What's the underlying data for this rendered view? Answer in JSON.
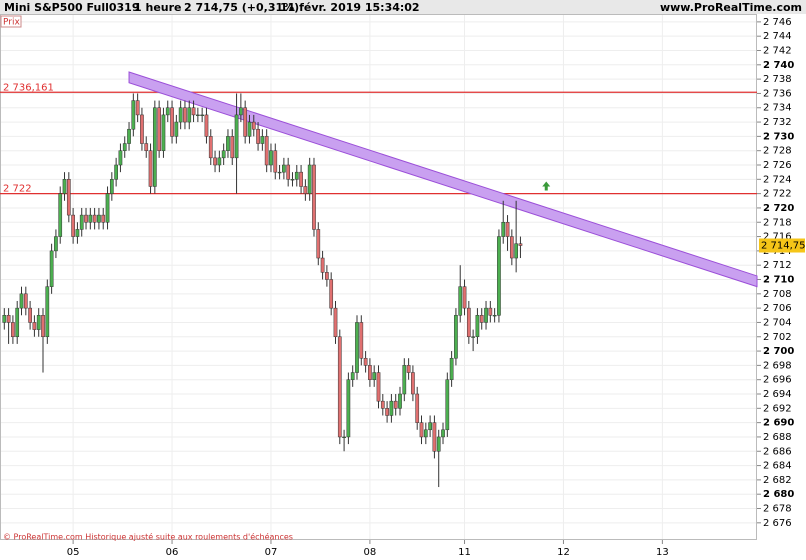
{
  "chart_data": {
    "type": "candlestick",
    "header": {
      "instrument": "Mini S&P500 Full0319",
      "period": "1 heure",
      "last": "2 714,75 (+0,31%)",
      "datetime": "11 févr. 2019 15:34:02",
      "site": "www.ProRealTime.com"
    },
    "panel_label": "Prix",
    "footer": "© ProRealTime.com Historique ajusté suite aux roulements d'échéances",
    "xlim": [
      -1,
      175
    ],
    "xticks": [
      {
        "value": 16,
        "label": "05"
      },
      {
        "value": 39,
        "label": "06"
      },
      {
        "value": 62,
        "label": "07"
      },
      {
        "value": 85,
        "label": "08"
      },
      {
        "value": 107,
        "label": "11"
      },
      {
        "value": 130,
        "label": "12"
      },
      {
        "value": 153,
        "label": "13"
      }
    ],
    "ylim": [
      2673.6,
      2747.1
    ],
    "yticks": [
      {
        "value": 2676,
        "label": "2 676"
      },
      {
        "value": 2678,
        "label": "2 678"
      },
      {
        "value": 2680,
        "label": "2 680"
      },
      {
        "value": 2682,
        "label": "2 682"
      },
      {
        "value": 2684,
        "label": "2 684"
      },
      {
        "value": 2686,
        "label": "2 686"
      },
      {
        "value": 2688,
        "label": "2 688"
      },
      {
        "value": 2690,
        "label": "2 690"
      },
      {
        "value": 2692,
        "label": "2 692"
      },
      {
        "value": 2694,
        "label": "2 694"
      },
      {
        "value": 2696,
        "label": "2 696"
      },
      {
        "value": 2698,
        "label": "2 698"
      },
      {
        "value": 2700,
        "label": "2 700"
      },
      {
        "value": 2702,
        "label": "2 702"
      },
      {
        "value": 2704,
        "label": "2 704"
      },
      {
        "value": 2706,
        "label": "2 706"
      },
      {
        "value": 2708,
        "label": "2 708"
      },
      {
        "value": 2710,
        "label": "2 710"
      },
      {
        "value": 2712,
        "label": "2 712"
      },
      {
        "value": 2714,
        "label": "2 714"
      },
      {
        "value": 2716,
        "label": "2 716"
      },
      {
        "value": 2718,
        "label": "2 718"
      },
      {
        "value": 2720,
        "label": "2 720"
      },
      {
        "value": 2722,
        "label": "2 722"
      },
      {
        "value": 2724,
        "label": "2 724"
      },
      {
        "value": 2726,
        "label": "2 726"
      },
      {
        "value": 2728,
        "label": "2 728"
      },
      {
        "value": 2730,
        "label": "2 730"
      },
      {
        "value": 2732,
        "label": "2 732"
      },
      {
        "value": 2734,
        "label": "2 734"
      },
      {
        "value": 2736,
        "label": "2 736"
      },
      {
        "value": 2738,
        "label": "2 738"
      },
      {
        "value": 2740,
        "label": "2 740"
      },
      {
        "value": 2742,
        "label": "2 742"
      },
      {
        "value": 2744,
        "label": "2 744"
      },
      {
        "value": 2746,
        "label": "2 746"
      }
    ],
    "grid": true,
    "up_color": "#4caf50",
    "down_color": "#e07070",
    "series": [
      {
        "name": "Mini S&P500 Full0319",
        "x": [
          0,
          1,
          2,
          3,
          4,
          5,
          6,
          7,
          8,
          9,
          10,
          11,
          12,
          13,
          14,
          15,
          16,
          17,
          18,
          19,
          20,
          21,
          22,
          23,
          24,
          25,
          26,
          27,
          28,
          29,
          30,
          31,
          32,
          33,
          34,
          35,
          36,
          37,
          38,
          39,
          40,
          41,
          42,
          43,
          44,
          45,
          46,
          47,
          48,
          49,
          50,
          51,
          52,
          53,
          54,
          55,
          56,
          57,
          58,
          59,
          60,
          61,
          62,
          63,
          64,
          65,
          66,
          67,
          68,
          69,
          70,
          71,
          72,
          73,
          74,
          75,
          76,
          77,
          78,
          79,
          80,
          81,
          82,
          83,
          84,
          85,
          86,
          87,
          88,
          89,
          90,
          91,
          92,
          93,
          94,
          95,
          96,
          97,
          98,
          99,
          100,
          101,
          102,
          103,
          104,
          105,
          106,
          107,
          108,
          109,
          110,
          111,
          112,
          113,
          114,
          115,
          116,
          117,
          118,
          119,
          120
        ],
        "open": [
          2704,
          2705,
          2704,
          2702,
          2706,
          2708,
          2706,
          2704,
          2703,
          2705,
          2702,
          2709,
          2714,
          2716,
          2722,
          2724,
          2719,
          2716,
          2717,
          2719,
          2718,
          2719,
          2718,
          2719,
          2718,
          2722,
          2724,
          2726,
          2728,
          2729,
          2731,
          2735,
          2733,
          2729,
          2728,
          2723,
          2734,
          2728,
          2733,
          2734,
          2730,
          2732,
          2734,
          2732,
          2734,
          2733,
          2733,
          2733,
          2730,
          2727,
          2726,
          2727,
          2728,
          2730,
          2727,
          2733,
          2734,
          2730,
          2732,
          2731,
          2729,
          2730,
          2726,
          2728,
          2725,
          2725,
          2726,
          2724,
          2724,
          2725,
          2723,
          2722,
          2726,
          2717,
          2713,
          2711,
          2710,
          2706,
          2702,
          2688,
          2688,
          2696,
          2697,
          2704,
          2699,
          2698,
          2696,
          2697,
          2693,
          2692,
          2691,
          2693,
          2692,
          2694,
          2698,
          2697,
          2694,
          2690,
          2688,
          2689,
          2690,
          2686,
          2688,
          2689,
          2696,
          2699,
          2705,
          2709,
          2706,
          2702,
          2702,
          2705,
          2704,
          2706,
          2705,
          2705,
          2716,
          2718,
          2716,
          2713,
          2715
        ],
        "high": [
          2706,
          2706,
          2705,
          2707,
          2709,
          2709,
          2707,
          2705,
          2706,
          2706,
          2710,
          2715,
          2717,
          2723,
          2725,
          2725,
          2720,
          2718,
          2720,
          2720,
          2720,
          2720,
          2720,
          2720,
          2723,
          2725,
          2727,
          2729,
          2730,
          2732,
          2736,
          2736,
          2734,
          2730,
          2729,
          2735,
          2735,
          2734,
          2735,
          2735,
          2733,
          2735,
          2735,
          2735,
          2735,
          2734,
          2734,
          2734,
          2731,
          2728,
          2728,
          2729,
          2731,
          2731,
          2736,
          2736,
          2735,
          2733,
          2733,
          2732,
          2731,
          2731,
          2729,
          2729,
          2726,
          2727,
          2727,
          2725,
          2726,
          2726,
          2724,
          2727,
          2727,
          2718,
          2714,
          2712,
          2711,
          2707,
          2703,
          2689,
          2697,
          2698,
          2705,
          2705,
          2700,
          2699,
          2698,
          2698,
          2694,
          2693,
          2694,
          2694,
          2695,
          2699,
          2699,
          2698,
          2695,
          2691,
          2690,
          2691,
          2691,
          2689,
          2690,
          2697,
          2700,
          2706,
          2712,
          2710,
          2707,
          2703,
          2706,
          2706,
          2707,
          2707,
          2706,
          2717,
          2721,
          2719,
          2717,
          2721,
          2716
        ],
        "low": [
          2703,
          2701,
          2701,
          2701,
          2705,
          2705,
          2703,
          2702,
          2702,
          2697,
          2701,
          2708,
          2713,
          2715,
          2721,
          2718,
          2715,
          2715,
          2716,
          2717,
          2717,
          2717,
          2717,
          2717,
          2717,
          2721,
          2723,
          2725,
          2727,
          2728,
          2730,
          2732,
          2728,
          2727,
          2722,
          2722,
          2727,
          2727,
          2732,
          2729,
          2729,
          2731,
          2731,
          2731,
          2732,
          2732,
          2732,
          2729,
          2726,
          2725,
          2725,
          2726,
          2727,
          2726,
          2722,
          2732,
          2729,
          2729,
          2730,
          2728,
          2728,
          2725,
          2725,
          2724,
          2724,
          2724,
          2723,
          2723,
          2723,
          2722,
          2721,
          2721,
          2716,
          2712,
          2710,
          2709,
          2705,
          2701,
          2687,
          2686,
          2687,
          2695,
          2696,
          2698,
          2697,
          2695,
          2695,
          2692,
          2691,
          2690,
          2690,
          2691,
          2691,
          2693,
          2696,
          2693,
          2689,
          2687,
          2687,
          2688,
          2685,
          2681,
          2687,
          2688,
          2695,
          2698,
          2704,
          2705,
          2701,
          2700,
          2701,
          2703,
          2703,
          2704,
          2704,
          2704,
          2715,
          2714,
          2712,
          2711,
          2713
        ],
        "close": [
          2705,
          2704,
          2702,
          2706,
          2708,
          2706,
          2704,
          2703,
          2705,
          2702,
          2709,
          2714,
          2716,
          2722,
          2724,
          2719,
          2716,
          2717,
          2719,
          2718,
          2719,
          2718,
          2719,
          2718,
          2722,
          2724,
          2726,
          2728,
          2729,
          2731,
          2735,
          2733,
          2729,
          2728,
          2723,
          2734,
          2728,
          2733,
          2734,
          2730,
          2732,
          2734,
          2732,
          2734,
          2733,
          2733,
          2733,
          2730,
          2727,
          2726,
          2727,
          2728,
          2730,
          2727,
          2733,
          2734,
          2730,
          2732,
          2731,
          2729,
          2730,
          2726,
          2728,
          2725,
          2725,
          2726,
          2724,
          2724,
          2725,
          2723,
          2722,
          2726,
          2717,
          2713,
          2711,
          2710,
          2706,
          2702,
          2688,
          2688,
          2696,
          2697,
          2704,
          2699,
          2698,
          2696,
          2697,
          2693,
          2692,
          2691,
          2693,
          2692,
          2694,
          2698,
          2697,
          2694,
          2690,
          2688,
          2689,
          2690,
          2686,
          2688,
          2689,
          2696,
          2699,
          2705,
          2709,
          2706,
          2702,
          2702,
          2705,
          2704,
          2706,
          2705,
          2705,
          2716,
          2718,
          2716,
          2713,
          2715,
          2714.75
        ]
      }
    ],
    "hlines": [
      {
        "value": 2736.161,
        "label": "2 736,161",
        "color": "#e03030"
      },
      {
        "value": 2722,
        "label": "2 722",
        "color": "#e03030"
      }
    ],
    "channel": {
      "x": [
        29,
        175
      ],
      "upper": [
        2739,
        2710.5
      ],
      "lower": [
        2737.5,
        2709
      ],
      "color": "#c9a0f0",
      "edge": "#9b4fd8"
    },
    "arrow": {
      "x": 126,
      "y": 2723,
      "color": "#3a9a3a"
    },
    "last_price": {
      "value": 2714.75,
      "label": "2 714,75",
      "color": "#f5c518"
    }
  }
}
